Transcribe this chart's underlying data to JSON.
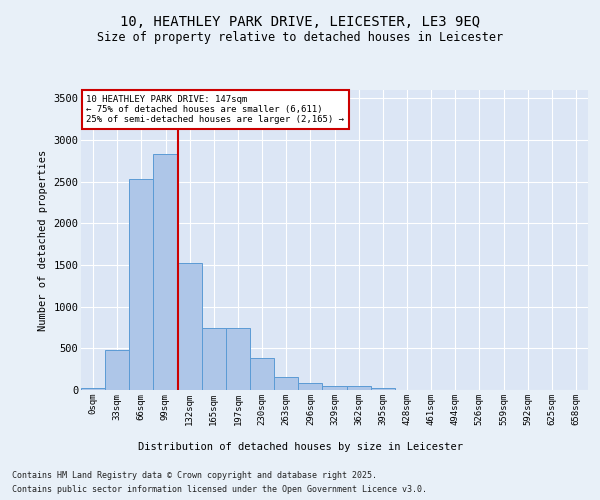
{
  "title": "10, HEATHLEY PARK DRIVE, LEICESTER, LE3 9EQ",
  "subtitle": "Size of property relative to detached houses in Leicester",
  "xlabel": "Distribution of detached houses by size in Leicester",
  "ylabel": "Number of detached properties",
  "bar_color": "#aec6e8",
  "bar_edge_color": "#5b9bd5",
  "background_color": "#dce6f5",
  "fig_background_color": "#e8f0f8",
  "grid_color": "#ffffff",
  "categories": [
    "0sqm",
    "33sqm",
    "66sqm",
    "99sqm",
    "132sqm",
    "165sqm",
    "197sqm",
    "230sqm",
    "263sqm",
    "296sqm",
    "329sqm",
    "362sqm",
    "395sqm",
    "428sqm",
    "461sqm",
    "494sqm",
    "526sqm",
    "559sqm",
    "592sqm",
    "625sqm",
    "658sqm"
  ],
  "bar_values": [
    20,
    480,
    2530,
    2830,
    1530,
    750,
    750,
    380,
    160,
    80,
    50,
    50,
    20,
    5,
    2,
    1,
    0,
    0,
    0,
    0,
    0
  ],
  "vline_index": 4,
  "vline_color": "#cc0000",
  "ylim": [
    0,
    3600
  ],
  "yticks": [
    0,
    500,
    1000,
    1500,
    2000,
    2500,
    3000,
    3500
  ],
  "annotation_text": "10 HEATHLEY PARK DRIVE: 147sqm\n← 75% of detached houses are smaller (6,611)\n25% of semi-detached houses are larger (2,165) →",
  "annotation_box_color": "#ffffff",
  "annotation_box_edge": "#cc0000",
  "footer_line1": "Contains HM Land Registry data © Crown copyright and database right 2025.",
  "footer_line2": "Contains public sector information licensed under the Open Government Licence v3.0."
}
